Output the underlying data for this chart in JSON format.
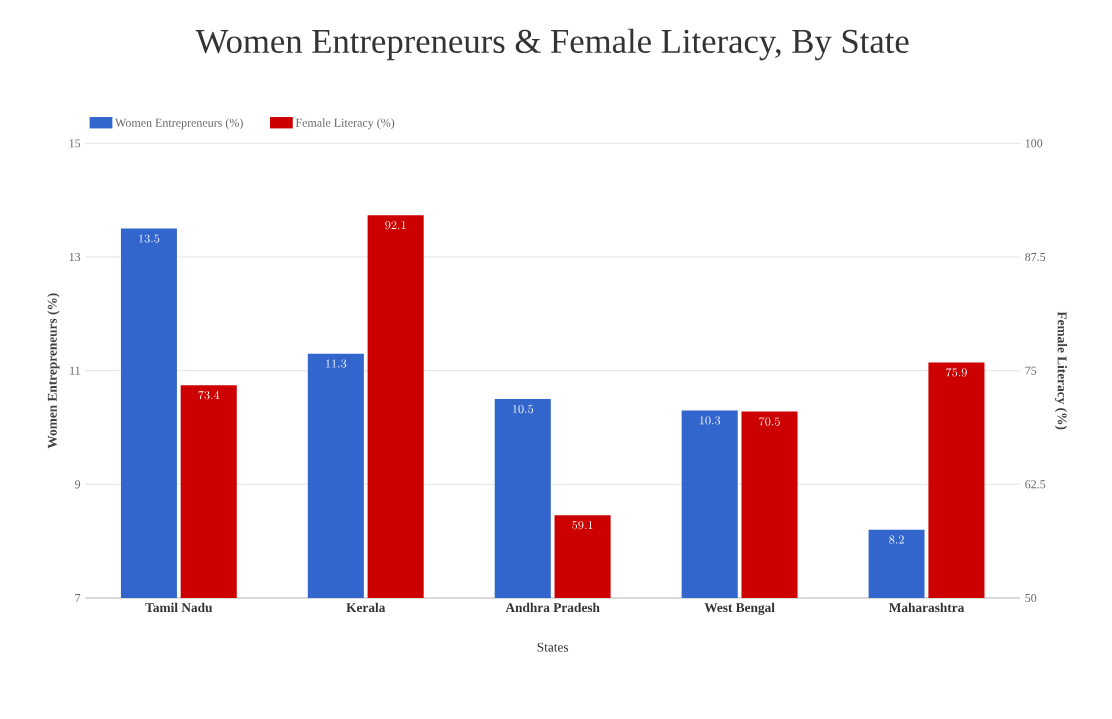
{
  "chart_data": {
    "type": "bar",
    "title": "Women Entrepreneurs & Female Literacy, By State",
    "xlabel": "States",
    "ylabel": "Women Entrepreneurs (%)",
    "y2label": "Female Literacy (%)",
    "categories": [
      "Tamil Nadu",
      "Kerala",
      "Andhra Pradesh",
      "West Bengal",
      "Maharashtra"
    ],
    "series": [
      {
        "name": "Women Entrepreneurs (%)",
        "color": "#3366cc",
        "values": [
          13.5,
          11.3,
          10.5,
          10.3,
          8.2
        ]
      },
      {
        "name": "Female Literacy (%)",
        "color": "#cc0000",
        "values": [
          73.4,
          92.1,
          59.1,
          70.5,
          75.9
        ],
        "axis": "y2"
      }
    ],
    "ylim": [
      7,
      15
    ],
    "yticks": [
      7,
      9,
      11,
      13,
      15
    ],
    "y2lim": [
      50,
      100
    ],
    "y2ticks": [
      50,
      62.5,
      75,
      87.5,
      100
    ],
    "grid": "y",
    "legend": "top left",
    "data_labels": true
  }
}
